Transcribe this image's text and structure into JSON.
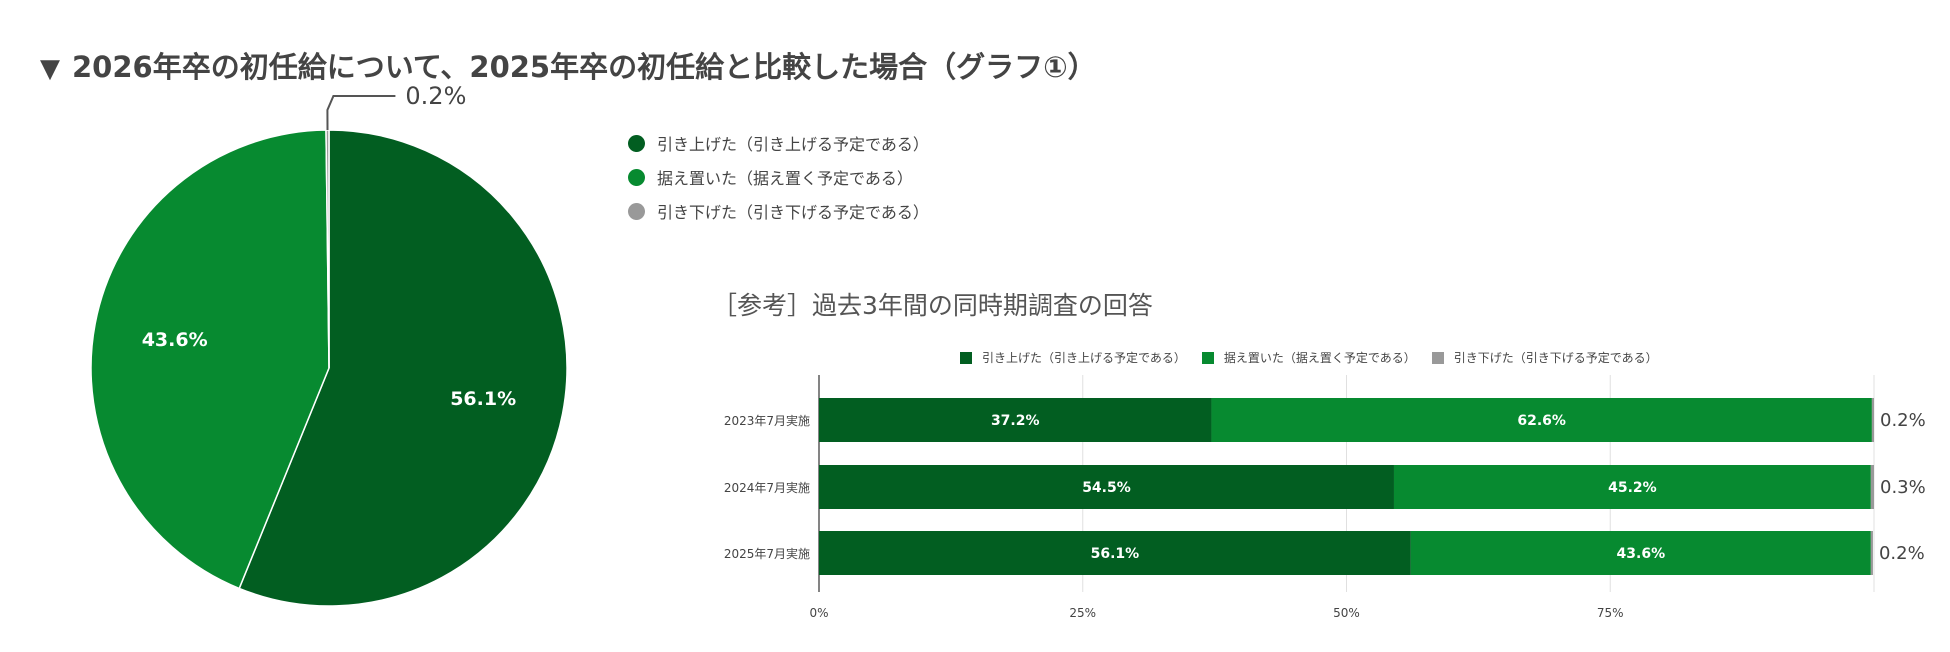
{
  "title": "2026年卒の初任給について、2025年卒の初任給と比較した場合（グラフ①）",
  "title_marker": "▼",
  "legend": [
    {
      "label": "引き上げた（引き上げる予定である）",
      "color": "#025e21"
    },
    {
      "label": "据え置いた（据え置く予定である）",
      "color": "#078a30"
    },
    {
      "label": "引き下げた（引き下げる予定である）",
      "color": "#999999"
    }
  ],
  "subtitle": "［参考］過去3年間の同時期調査の回答",
  "chart_data": [
    {
      "type": "pie",
      "labels": [
        "引き上げた（引き上げる予定である）",
        "据え置いた（据え置く予定である）",
        "引き下げた（引き下げる予定である）"
      ],
      "values": [
        56.1,
        43.6,
        0.2
      ],
      "value_labels": [
        "56.1%",
        "43.6%",
        "0.2%"
      ],
      "colors": [
        "#025e21",
        "#078a30",
        "#999999"
      ]
    },
    {
      "type": "bar",
      "orientation": "horizontal",
      "stacked": true,
      "title": "［参考］過去3年間の同時期調査の回答",
      "categories": [
        "2023年7月実施",
        "2024年7月実施",
        "2025年7月実施"
      ],
      "series": [
        {
          "name": "引き上げた（引き上げる予定である）",
          "values": [
            37.2,
            54.5,
            56.1
          ],
          "labels": [
            "37.2%",
            "54.5%",
            "56.1%"
          ],
          "color": "#025e21"
        },
        {
          "name": "据え置いた（据え置く予定である）",
          "values": [
            62.6,
            45.2,
            43.6
          ],
          "labels": [
            "62.6%",
            "45.2%",
            "43.6%"
          ],
          "color": "#078a30"
        },
        {
          "name": "引き下げた（引き下げる予定である）",
          "values": [
            0.2,
            0.3,
            0.2
          ],
          "labels": [
            "0.2%",
            "0.3%",
            "0.2%"
          ],
          "color": "#999999"
        }
      ],
      "xlim": [
        0,
        100
      ],
      "xticks": [
        "0%",
        "25%",
        "50%",
        "75%"
      ],
      "grid": true,
      "legend_position": "top"
    }
  ]
}
